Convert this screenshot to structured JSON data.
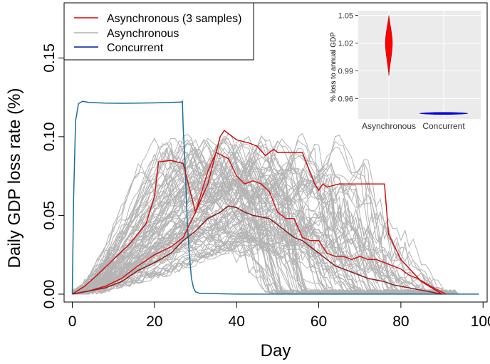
{
  "chart_data": [
    {
      "type": "line",
      "title": "",
      "xlabel": "Day",
      "ylabel": "Daily GDP loss rate (%)",
      "xlim": [
        -2,
        101
      ],
      "ylim": [
        -0.005,
        0.185
      ],
      "xticks": [
        0,
        20,
        40,
        60,
        80,
        100
      ],
      "yticks": [
        0.0,
        0.05,
        0.1,
        0.15
      ],
      "ytick_labels": [
        "0.00",
        "0.05",
        "0.10",
        "0.15"
      ],
      "legend": {
        "position": "top-left",
        "entries": [
          {
            "label": "Asynchronous (3 samples)",
            "color": "#e00000"
          },
          {
            "label": "Asynchronous",
            "color": "#b4b4b4"
          },
          {
            "label": "Concurrent",
            "color": "#001a99"
          }
        ]
      },
      "series": [
        {
          "name": "Concurrent",
          "color": "#1a6f96",
          "x": [
            0,
            0.3,
            0.8,
            1.5,
            2.5,
            4,
            8,
            12,
            16,
            20,
            24,
            26.5,
            26.8,
            27,
            27.5,
            28,
            28.5,
            29,
            29.5,
            30,
            31,
            40,
            60,
            80,
            99
          ],
          "y": [
            0,
            0.06,
            0.11,
            0.121,
            0.1225,
            0.1218,
            0.1213,
            0.1212,
            0.1213,
            0.1215,
            0.1218,
            0.122,
            0.1225,
            0.106,
            0.08,
            0.045,
            0.025,
            0.01,
            0.004,
            0.0015,
            0.0005,
            0.0,
            0.0,
            0.0,
            0.0
          ]
        },
        {
          "name": "Asynchronous sample 1",
          "color": "#cc1010",
          "x": [
            0,
            3,
            6,
            10,
            14,
            18,
            20,
            21,
            24,
            27,
            30,
            33,
            36,
            37,
            40,
            43,
            45,
            47,
            49,
            50,
            53,
            56,
            59,
            60,
            61,
            62,
            65,
            70,
            76,
            77,
            80,
            85,
            90
          ],
          "y": [
            0,
            0.005,
            0.012,
            0.022,
            0.032,
            0.045,
            0.062,
            0.084,
            0.085,
            0.083,
            0.052,
            0.07,
            0.1,
            0.104,
            0.098,
            0.096,
            0.094,
            0.088,
            0.092,
            0.09,
            0.09,
            0.09,
            0.07,
            0.066,
            0.07,
            0.068,
            0.07,
            0.07,
            0.07,
            0.038,
            0.022,
            0.008,
            0.0
          ]
        },
        {
          "name": "Asynchronous sample 2",
          "color": "#d41414",
          "x": [
            0,
            4,
            8,
            12,
            16,
            20,
            24,
            27,
            30,
            33,
            35,
            38,
            40,
            42,
            44,
            46,
            48,
            50,
            52,
            54,
            56,
            58,
            60,
            62,
            64,
            66,
            68,
            70,
            72,
            74,
            76,
            78,
            80,
            82,
            84,
            86,
            88,
            91
          ],
          "y": [
            0,
            0.002,
            0.005,
            0.01,
            0.018,
            0.025,
            0.03,
            0.036,
            0.052,
            0.078,
            0.09,
            0.086,
            0.075,
            0.07,
            0.072,
            0.07,
            0.065,
            0.052,
            0.048,
            0.048,
            0.036,
            0.034,
            0.034,
            0.026,
            0.024,
            0.024,
            0.022,
            0.024,
            0.022,
            0.022,
            0.02,
            0.018,
            0.016,
            0.012,
            0.01,
            0.007,
            0.004,
            0.0
          ]
        },
        {
          "name": "Asynchronous sample 3",
          "color": "#8b1a1a",
          "x": [
            0,
            4,
            8,
            12,
            16,
            20,
            24,
            27,
            30,
            33,
            36,
            38,
            40,
            42,
            44,
            46,
            48,
            50,
            52,
            54,
            56,
            58,
            60,
            62,
            64,
            66,
            68,
            70,
            72,
            74,
            76,
            78,
            80,
            82,
            84,
            86,
            88,
            90
          ],
          "y": [
            0,
            0.002,
            0.004,
            0.008,
            0.015,
            0.02,
            0.026,
            0.034,
            0.04,
            0.048,
            0.052,
            0.056,
            0.055,
            0.052,
            0.05,
            0.049,
            0.048,
            0.044,
            0.04,
            0.036,
            0.034,
            0.03,
            0.026,
            0.022,
            0.018,
            0.016,
            0.014,
            0.012,
            0.01,
            0.009,
            0.008,
            0.006,
            0.005,
            0.004,
            0.003,
            0.002,
            0.001,
            0.0
          ]
        }
      ],
      "background_ensemble": {
        "name": "Asynchronous",
        "color": "#b4b4b4",
        "count": 100,
        "day_range": [
          0,
          93
        ],
        "peak_range": [
          0.03,
          0.1
        ]
      }
    },
    {
      "type": "violin",
      "title": "",
      "ylabel": "% loss to annual GDP",
      "ylim": [
        0.938,
        1.055
      ],
      "yticks": [
        0.96,
        0.99,
        1.02,
        1.05
      ],
      "ytick_labels": [
        "0.96",
        "0.99",
        "1.02",
        "1.05"
      ],
      "categories": [
        "Asynchronous",
        "Concurrent"
      ],
      "series": [
        {
          "name": "Asynchronous",
          "color": "#ff0000",
          "min": 0.985,
          "max": 1.05,
          "center": 1.02
        },
        {
          "name": "Concurrent",
          "color": "#0000ff",
          "min": 0.9425,
          "max": 0.945,
          "center": 0.944
        }
      ]
    }
  ]
}
